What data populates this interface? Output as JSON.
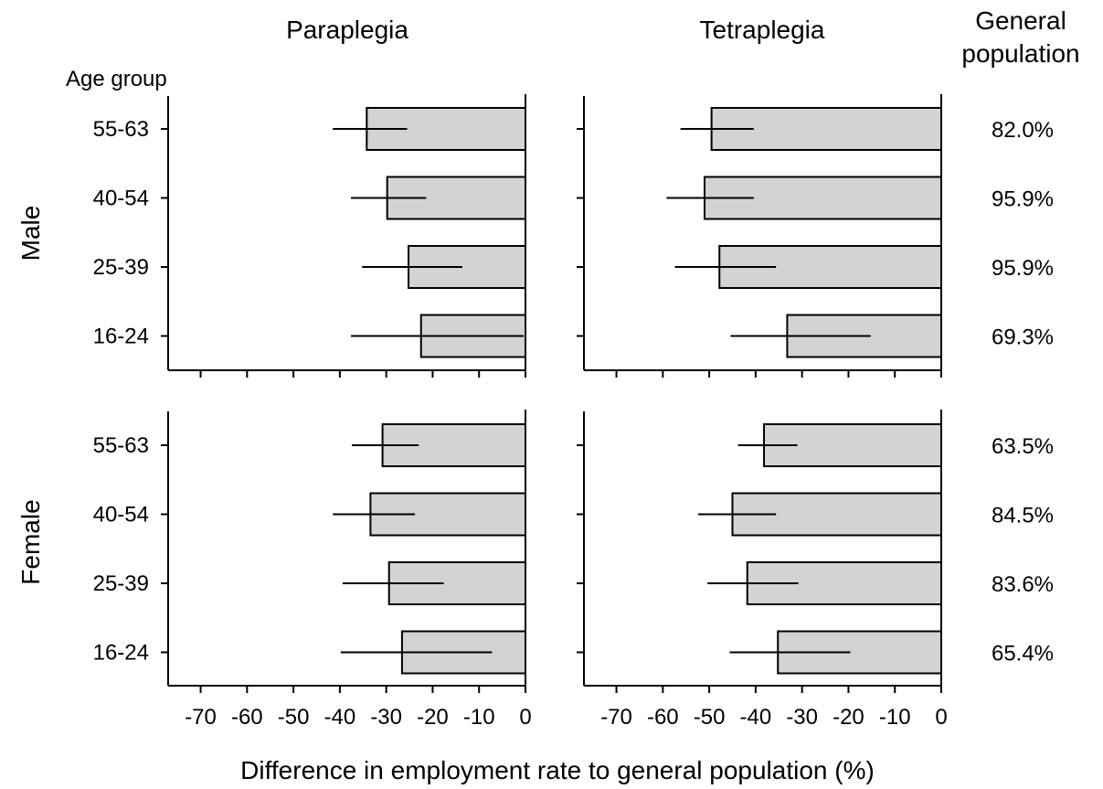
{
  "chart_data": {
    "type": "bar",
    "orientation": "horizontal",
    "xlabel": "Difference in employment rate to general population (%)",
    "ylabel_title": "Age group",
    "general_population_title": [
      "General",
      "population"
    ],
    "columns": [
      "Paraplegia",
      "Tetraplegia"
    ],
    "rows": [
      "Male",
      "Female"
    ],
    "categories": [
      "55-63",
      "40-54",
      "25-39",
      "16-24"
    ],
    "xlim": [
      -77,
      0
    ],
    "xticks": [
      -70,
      -60,
      -50,
      -40,
      -30,
      -20,
      -10,
      0
    ],
    "xtick_labels": [
      "-70",
      "-60",
      "-50",
      "-40",
      "-30",
      "-20",
      "-10",
      "0"
    ],
    "bar_color": "#d3d3d3",
    "panels": [
      {
        "row": "Male",
        "column": "Paraplegia",
        "values": [
          -34.2,
          -29.8,
          -25.2,
          -22.5
        ],
        "ci": [
          [
            -41.5,
            -25.5
          ],
          [
            -37.6,
            -21.4
          ],
          [
            -35.2,
            -13.6
          ],
          [
            -37.6,
            -0.4
          ]
        ]
      },
      {
        "row": "Male",
        "column": "Tetraplegia",
        "values": [
          -49.5,
          -51.0,
          -47.8,
          -33.2
        ],
        "ci": [
          [
            -56.2,
            -40.4
          ],
          [
            -59.2,
            -40.4
          ],
          [
            -57.4,
            -35.6
          ],
          [
            -45.4,
            -15.2
          ]
        ]
      },
      {
        "row": "Female",
        "column": "Paraplegia",
        "values": [
          -30.8,
          -33.4,
          -29.4,
          -26.6
        ],
        "ci": [
          [
            -37.4,
            -23.0
          ],
          [
            -41.5,
            -23.8
          ],
          [
            -39.4,
            -17.6
          ],
          [
            -39.8,
            -7.2
          ]
        ]
      },
      {
        "row": "Female",
        "column": "Tetraplegia",
        "values": [
          -38.2,
          -45.0,
          -41.8,
          -35.2
        ],
        "ci": [
          [
            -43.8,
            -31.0
          ],
          [
            -52.4,
            -35.6
          ],
          [
            -50.4,
            -30.8
          ],
          [
            -45.6,
            -19.6
          ]
        ]
      }
    ],
    "general_population": {
      "Male": [
        "82.0%",
        "95.9%",
        "95.9%",
        "69.3%"
      ],
      "Female": [
        "63.5%",
        "84.5%",
        "83.6%",
        "65.4%"
      ]
    }
  }
}
